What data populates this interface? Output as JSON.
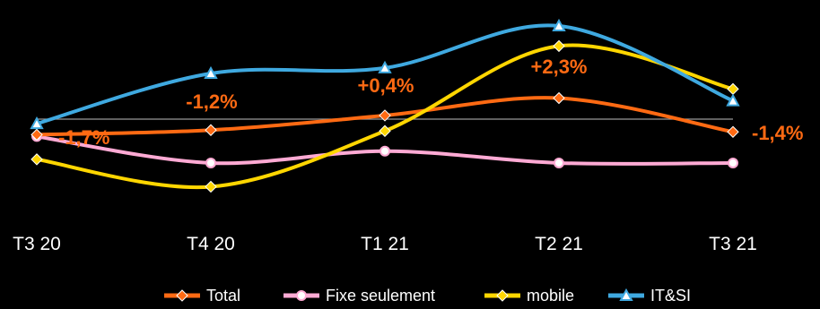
{
  "chart_data": {
    "type": "line",
    "categories": [
      "T3 20",
      "T4 20",
      "T1 21",
      "T2 21",
      "T3 21"
    ],
    "ylim": [
      -6.5,
      8.0
    ],
    "grid": false,
    "baseline": 0,
    "legend_position": "bottom",
    "series": [
      {
        "name": "Total",
        "color": "#ff6a13",
        "marker": "diamond",
        "values": [
          -1.7,
          -1.2,
          0.4,
          2.3,
          -1.4
        ]
      },
      {
        "name": "Fixe seulement",
        "color": "#ffaad4",
        "marker": "circle",
        "values": [
          -1.9,
          -4.8,
          -3.5,
          -4.8,
          -4.8
        ]
      },
      {
        "name": "mobile",
        "color": "#ffd600",
        "marker": "diamond",
        "values": [
          -4.4,
          -7.4,
          -1.3,
          8.0,
          3.3
        ]
      },
      {
        "name": "IT&SI",
        "color": "#3fa9e0",
        "marker": "triangle",
        "values": [
          -0.5,
          5.0,
          5.6,
          10.2,
          2.0
        ]
      }
    ],
    "data_labels": [
      "-1,7%",
      "-1,2%",
      "+0,4%",
      "+2,3%",
      "-1,4%"
    ]
  }
}
